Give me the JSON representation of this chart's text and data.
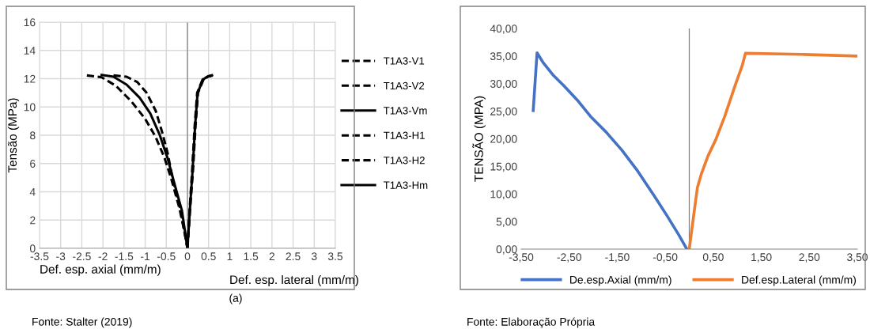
{
  "chart_data": [
    {
      "type": "line",
      "ylabel": "Tensão (MPa)",
      "xlabel": "Def. esp. axial (mm/m)",
      "annotations": [
        "Def. esp. lateral (mm/m)",
        "(a)",
        "Fonte: Stalter (2019)"
      ],
      "xlim": [
        -3.5,
        3.5
      ],
      "xticks": [
        -3.5,
        -3,
        -2.5,
        -2,
        -1.5,
        -1,
        -0.5,
        0,
        0.5,
        1,
        1.5,
        2,
        2.5,
        3,
        3.5
      ],
      "ylim": [
        0,
        16
      ],
      "yticks": [
        0,
        2,
        4,
        6,
        8,
        10,
        12,
        14,
        16
      ],
      "grid": true,
      "legend": "right",
      "ref_lines": [
        {
          "axis": "x",
          "value": 0,
          "color": "#808080"
        }
      ],
      "series": [
        {
          "name": "T1A3-V1",
          "color": "#000000",
          "line_style": "dashed",
          "x": [
            -2.38,
            -2.03,
            -1.69,
            -1.32,
            -1.0,
            -0.75,
            -0.54,
            -0.38,
            -0.19,
            -0.07,
            0
          ],
          "values": [
            12.23,
            12.1,
            11.49,
            10.37,
            9.16,
            7.86,
            6.38,
            4.89,
            2.84,
            1.17,
            0
          ]
        },
        {
          "name": "T1A3-V2",
          "color": "#000000",
          "line_style": "dashed",
          "x": [
            -1.75,
            -1.44,
            -1.19,
            -0.97,
            -0.75,
            -0.6,
            -0.47,
            -0.35,
            -0.16,
            0
          ],
          "values": [
            12.23,
            12.14,
            11.77,
            11.02,
            9.72,
            8.23,
            6.75,
            4.89,
            2.66,
            0
          ]
        },
        {
          "name": "T1A3-Vm",
          "color": "#000000",
          "line_style": "solid",
          "x": [
            -2.03,
            -1.75,
            -1.44,
            -1.13,
            -0.88,
            -0.66,
            -0.47,
            -0.32,
            -0.13,
            0
          ],
          "values": [
            12.27,
            12.14,
            11.58,
            10.65,
            9.54,
            8.05,
            6.38,
            4.7,
            2.66,
            0
          ]
        },
        {
          "name": "T1A3-H1",
          "color": "#000000",
          "line_style": "dashed",
          "x": [
            0,
            0.05,
            0.11,
            0.17,
            0.23,
            0.36,
            0.48,
            0.56
          ],
          "values": [
            0,
            2.66,
            5.45,
            8.6,
            11.0,
            11.95,
            12.15,
            12.2
          ]
        },
        {
          "name": "T1A3-H2",
          "color": "#000000",
          "line_style": "dashed",
          "x": [
            0,
            0.06,
            0.13,
            0.19,
            0.25,
            0.38,
            0.5,
            0.6
          ],
          "values": [
            0,
            2.66,
            5.45,
            8.6,
            11.0,
            11.95,
            12.17,
            12.23
          ]
        },
        {
          "name": "T1A3-Hm",
          "color": "#000000",
          "line_style": "solid",
          "x": [
            0,
            0.056,
            0.12,
            0.18,
            0.24,
            0.37,
            0.49,
            0.58
          ],
          "values": [
            0,
            2.66,
            5.45,
            8.6,
            11.0,
            11.95,
            12.17,
            12.25
          ]
        }
      ]
    },
    {
      "type": "line",
      "ylabel": "TENSÃO (MPA)",
      "annotations": [
        "Fonte: Elaboração Própria"
      ],
      "xlim": [
        -3.5,
        3.5
      ],
      "xticks": [
        {
          "value": -3.5,
          "label": "-3,50"
        },
        {
          "value": -2.5,
          "label": "-2,50"
        },
        {
          "value": -1.5,
          "label": "-1,50"
        },
        {
          "value": -0.5,
          "label": "-0,50"
        },
        {
          "value": 0.5,
          "label": "0,50"
        },
        {
          "value": 1.5,
          "label": "1,50"
        },
        {
          "value": 2.5,
          "label": "2,50"
        },
        {
          "value": 3.5,
          "label": "3,50"
        }
      ],
      "ylim": [
        0,
        40
      ],
      "yticks": [
        {
          "value": 0,
          "label": "0,00"
        },
        {
          "value": 5,
          "label": "5,00"
        },
        {
          "value": 10,
          "label": "10,00"
        },
        {
          "value": 15,
          "label": "15,00"
        },
        {
          "value": 20,
          "label": "20,00"
        },
        {
          "value": 25,
          "label": "25,00"
        },
        {
          "value": 30,
          "label": "30,00"
        },
        {
          "value": 35,
          "label": "35,00"
        },
        {
          "value": 40,
          "label": "40,00"
        }
      ],
      "grid": false,
      "legend": "bottom",
      "ref_lines": [
        {
          "axis": "x",
          "value": 0,
          "color": "#808080"
        }
      ],
      "series": [
        {
          "name": "De.esp.Axial (mm/m)",
          "color": "#4472c4",
          "line_style": "solid",
          "x": [
            -3.25,
            -3.17,
            -3.05,
            -2.83,
            -2.61,
            -2.33,
            -2.06,
            -1.73,
            -1.4,
            -1.07,
            -0.74,
            -0.46,
            -0.22,
            -0.05
          ],
          "values": [
            25.1,
            35.6,
            33.9,
            31.5,
            29.6,
            27.0,
            24.1,
            21.2,
            17.9,
            14.1,
            9.8,
            6.0,
            2.6,
            0
          ]
        },
        {
          "name": "Def.esp.Lateral (mm/m)",
          "color": "#ed7d31",
          "line_style": "solid",
          "x": [
            0,
            0.09,
            0.17,
            0.25,
            0.39,
            0.55,
            0.74,
            0.96,
            1.1,
            1.17,
            2.34,
            3.5
          ],
          "values": [
            0,
            6.0,
            11.2,
            13.6,
            16.9,
            19.8,
            24.1,
            29.8,
            33.2,
            35.5,
            35.3,
            35.0
          ]
        }
      ]
    }
  ]
}
